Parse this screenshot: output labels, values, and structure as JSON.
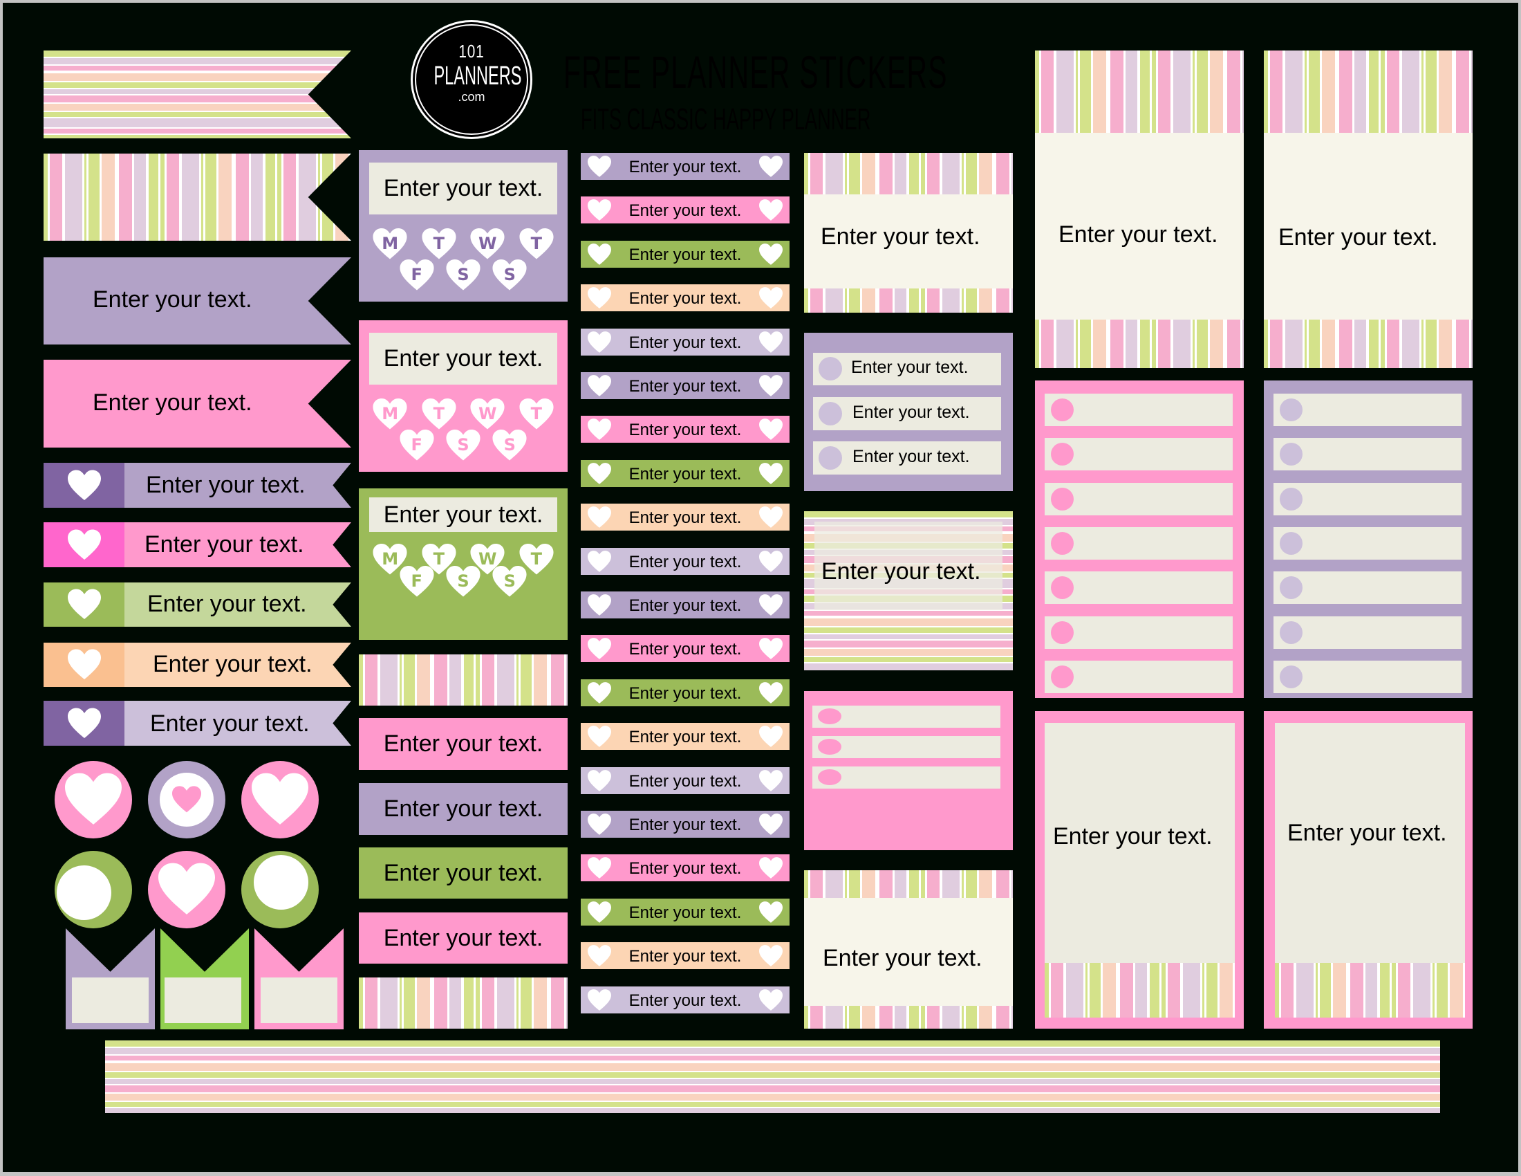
{
  "header": {
    "logo": {
      "line1": "101",
      "line2": "PLANNERS",
      "line3": ".com"
    },
    "title": "FREE PLANNER STICKERS",
    "subtitle": "FITS CLASSIC HAPPY PLANNER"
  },
  "colors": {
    "background": "#000a03",
    "purple": "#b2a2c7",
    "purple_dark": "#8064a2",
    "purple_light": "#ccc0da",
    "pink": "#ff99cc",
    "pink_dark": "#ff66cc",
    "green": "#9bbb59",
    "green_light": "#c4d79b",
    "green_bright": "#92d050",
    "peach": "#fcd5b4",
    "peach_dark": "#fac090",
    "cream": "#ecebe0",
    "ivory": "#f7f5ea"
  },
  "placeholder": "Enter your text.",
  "flags": [
    {
      "style": "stripes-horizontal",
      "text": ""
    },
    {
      "style": "stripes-vertical",
      "text": ""
    },
    {
      "style": "purple",
      "text": "Enter your text."
    },
    {
      "style": "pink",
      "text": "Enter your text."
    }
  ],
  "heart_flags": [
    {
      "tab_color": "#8064a2",
      "body_color": "#b2a2c7",
      "text": "Enter your text."
    },
    {
      "tab_color": "#ff66cc",
      "body_color": "#ff99cc",
      "text": "Enter your text."
    },
    {
      "tab_color": "#9bbb59",
      "body_color": "#c4d79b",
      "text": "Enter your text."
    },
    {
      "tab_color": "#fac090",
      "body_color": "#fcd5b4",
      "text": "Enter your text."
    },
    {
      "tab_color": "#8064a2",
      "body_color": "#ccc0da",
      "text": "Enter your text."
    }
  ],
  "circles": [
    {
      "ring": "#ff99cc",
      "inner": "heart-large"
    },
    {
      "ring": "#b2a2c7",
      "inner": "heart-small-pink"
    },
    {
      "ring": "#ff99cc",
      "inner": "heart-large"
    },
    {
      "ring": "#9bbb59",
      "inner": "dot-offset-left"
    },
    {
      "ring": "#ff99cc",
      "inner": "heart-large"
    },
    {
      "ring": "#9bbb59",
      "inner": "dot-offset-top"
    }
  ],
  "m_tabs": [
    {
      "color": "#b2a2c7"
    },
    {
      "color": "#92d050"
    },
    {
      "color": "#ff99cc"
    }
  ],
  "week_cards": [
    {
      "color": "#b2a2c7",
      "letter_color": "#8064a2",
      "text": "Enter your text.",
      "days": [
        "M",
        "T",
        "W",
        "T",
        "F",
        "S",
        "S"
      ]
    },
    {
      "color": "#ff99cc",
      "letter_color": "#ff99cc",
      "text": "Enter your text.",
      "days": [
        "M",
        "T",
        "W",
        "T",
        "F",
        "S",
        "S"
      ]
    },
    {
      "color": "#9bbb59",
      "letter_color": "#9bbb59",
      "text": "Enter your text.",
      "days": [
        "M",
        "T",
        "W",
        "T",
        "F",
        "S",
        "S"
      ]
    }
  ],
  "labels_col2": [
    {
      "color": "#ff99cc",
      "text": "Enter your text."
    },
    {
      "color": "#b2a2c7",
      "text": "Enter your text."
    },
    {
      "color": "#9bbb59",
      "text": "Enter your text."
    },
    {
      "color": "#ff99cc",
      "text": "Enter your text."
    }
  ],
  "heart_labels": [
    {
      "color": "#b2a2c7",
      "text": "Enter your text."
    },
    {
      "color": "#ff99cc",
      "text": "Enter your text."
    },
    {
      "color": "#9bbb59",
      "text": "Enter your text."
    },
    {
      "color": "#fcd5b4",
      "text": "Enter your text."
    },
    {
      "color": "#ccc0da",
      "text": "Enter your text."
    },
    {
      "color": "#b2a2c7",
      "text": "Enter your text."
    },
    {
      "color": "#ff99cc",
      "text": "Enter your text."
    },
    {
      "color": "#9bbb59",
      "text": "Enter your text."
    },
    {
      "color": "#fcd5b4",
      "text": "Enter your text."
    },
    {
      "color": "#ccc0da",
      "text": "Enter your text."
    },
    {
      "color": "#b2a2c7",
      "text": "Enter your text."
    },
    {
      "color": "#ff99cc",
      "text": "Enter your text."
    },
    {
      "color": "#9bbb59",
      "text": "Enter your text."
    },
    {
      "color": "#fcd5b4",
      "text": "Enter your text."
    },
    {
      "color": "#ccc0da",
      "text": "Enter your text."
    },
    {
      "color": "#b2a2c7",
      "text": "Enter your text."
    },
    {
      "color": "#ff99cc",
      "text": "Enter your text."
    },
    {
      "color": "#9bbb59",
      "text": "Enter your text."
    },
    {
      "color": "#fcd5b4",
      "text": "Enter your text."
    },
    {
      "color": "#ccc0da",
      "text": "Enter your text."
    }
  ],
  "col4": {
    "stripe_card_top": {
      "text": "Enter your text."
    },
    "purple_list": {
      "items": [
        "Enter your text.",
        "Enter your text.",
        "Enter your text."
      ]
    },
    "hstripe_card": {
      "text": "Enter your text."
    },
    "pink_list": {
      "rows": 3
    },
    "stripe_card_bottom": {
      "text": "Enter your text."
    }
  },
  "tall_cards": [
    {
      "text": "Enter your text."
    },
    {
      "text": "Enter your text."
    }
  ],
  "checklists": [
    {
      "color": "#ff99cc",
      "dot": "#ff99cc",
      "rows": 7
    },
    {
      "color": "#b2a2c7",
      "dot": "#ccc0da",
      "rows": 7
    }
  ],
  "framed_cards": [
    {
      "text": "Enter your text."
    },
    {
      "text": "Enter your text."
    }
  ]
}
